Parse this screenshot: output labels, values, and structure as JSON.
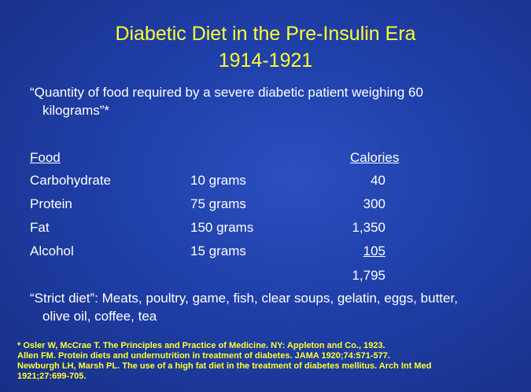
{
  "title": {
    "line1": "Diabetic Diet in the Pre-Insulin Era",
    "line2": "1914-1921"
  },
  "quote": {
    "line1": "“Quantity of food required by a severe diabetic patient weighing 60",
    "line2": "kilograms”*"
  },
  "table": {
    "headers": {
      "food": "Food",
      "calories": "Calories"
    },
    "rows": [
      {
        "food": "Carbohydrate",
        "amount": "10 grams",
        "calories": "40"
      },
      {
        "food": "Protein",
        "amount": "75 grams",
        "calories": "300"
      },
      {
        "food": "Fat",
        "amount": "150 grams",
        "calories": "1,350"
      },
      {
        "food": "Alcohol",
        "amount": "15 grams",
        "calories": "105"
      }
    ],
    "total": "1,795"
  },
  "strict_diet": {
    "line1": "“Strict diet”: Meats, poultry, game, fish, clear soups, gelatin, eggs, butter,",
    "line2": "olive oil, coffee, tea"
  },
  "references": [
    "* Osler W, McCrae T.  The Principles and Practice of Medicine. NY: Appleton and Co., 1923.",
    "Allen FM.  Protein diets and undernutrition in treatment of diabetes. JAMA 1920;74:571-577.",
    "Newburgh LH, Marsh PL.  The use of a high fat diet in the treatment of diabetes mellitus.  Arch Int Med",
    "1921;27:699-705."
  ],
  "colors": {
    "background": "#1f3fa8",
    "title_text": "#ffff33",
    "body_text": "#ffffff",
    "reference_text": "#ffff33"
  }
}
